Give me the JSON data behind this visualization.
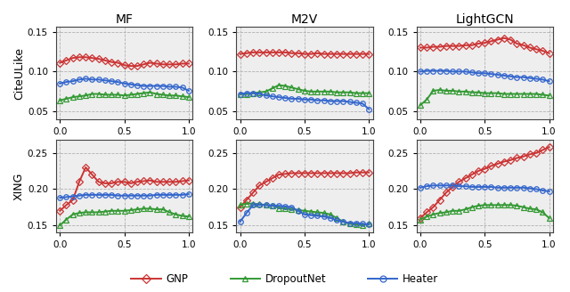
{
  "x_vals": [
    0.0,
    0.05,
    0.1,
    0.15,
    0.2,
    0.25,
    0.3,
    0.35,
    0.4,
    0.45,
    0.5,
    0.55,
    0.6,
    0.65,
    0.7,
    0.75,
    0.8,
    0.85,
    0.9,
    0.95,
    1.0
  ],
  "col_titles": [
    "MF",
    "M2V",
    "LightGCN"
  ],
  "row_titles": [
    "CiteULike",
    "XING"
  ],
  "colors": {
    "GNP": "#cc3333",
    "DropoutNet": "#339933",
    "Heater": "#3366cc"
  },
  "markers": {
    "GNP": "D",
    "DropoutNet": "^",
    "Heater": "o"
  },
  "data": {
    "CiteULike": {
      "MF": {
        "GNP": [
          0.111,
          0.114,
          0.117,
          0.118,
          0.118,
          0.117,
          0.116,
          0.114,
          0.112,
          0.111,
          0.108,
          0.107,
          0.107,
          0.109,
          0.111,
          0.11,
          0.109,
          0.109,
          0.109,
          0.11,
          0.11
        ],
        "DropoutNet": [
          0.064,
          0.066,
          0.068,
          0.069,
          0.07,
          0.072,
          0.072,
          0.071,
          0.071,
          0.071,
          0.07,
          0.071,
          0.072,
          0.073,
          0.074,
          0.072,
          0.071,
          0.07,
          0.07,
          0.069,
          0.068
        ],
        "Heater": [
          0.085,
          0.087,
          0.088,
          0.09,
          0.091,
          0.09,
          0.09,
          0.089,
          0.088,
          0.087,
          0.085,
          0.084,
          0.083,
          0.082,
          0.082,
          0.082,
          0.082,
          0.081,
          0.081,
          0.08,
          0.076
        ]
      },
      "M2V": {
        "GNP": [
          0.122,
          0.123,
          0.124,
          0.124,
          0.124,
          0.124,
          0.124,
          0.124,
          0.123,
          0.123,
          0.122,
          0.122,
          0.123,
          0.122,
          0.122,
          0.122,
          0.122,
          0.122,
          0.122,
          0.122,
          0.122
        ],
        "DropoutNet": [
          0.072,
          0.072,
          0.073,
          0.074,
          0.075,
          0.079,
          0.083,
          0.082,
          0.08,
          0.078,
          0.076,
          0.075,
          0.075,
          0.075,
          0.075,
          0.074,
          0.074,
          0.074,
          0.073,
          0.073,
          0.073
        ],
        "Heater": [
          0.072,
          0.073,
          0.073,
          0.072,
          0.07,
          0.069,
          0.068,
          0.067,
          0.066,
          0.066,
          0.065,
          0.065,
          0.064,
          0.064,
          0.063,
          0.063,
          0.063,
          0.062,
          0.061,
          0.06,
          0.053
        ]
      },
      "LightGCN": {
        "GNP": [
          0.13,
          0.13,
          0.131,
          0.131,
          0.132,
          0.132,
          0.132,
          0.133,
          0.133,
          0.135,
          0.136,
          0.138,
          0.14,
          0.142,
          0.14,
          0.135,
          0.133,
          0.13,
          0.128,
          0.126,
          0.123
        ],
        "DropoutNet": [
          0.058,
          0.065,
          0.076,
          0.077,
          0.076,
          0.076,
          0.075,
          0.075,
          0.074,
          0.074,
          0.073,
          0.073,
          0.073,
          0.072,
          0.072,
          0.072,
          0.072,
          0.072,
          0.072,
          0.071,
          0.07
        ],
        "Heater": [
          0.1,
          0.101,
          0.101,
          0.101,
          0.101,
          0.1,
          0.1,
          0.1,
          0.099,
          0.098,
          0.098,
          0.097,
          0.096,
          0.095,
          0.094,
          0.093,
          0.093,
          0.092,
          0.091,
          0.09,
          0.088
        ]
      }
    },
    "XING": {
      "MF": {
        "GNP": [
          0.17,
          0.178,
          0.185,
          0.21,
          0.23,
          0.22,
          0.21,
          0.208,
          0.208,
          0.21,
          0.21,
          0.208,
          0.21,
          0.211,
          0.212,
          0.21,
          0.21,
          0.21,
          0.21,
          0.211,
          0.212
        ],
        "DropoutNet": [
          0.15,
          0.158,
          0.165,
          0.167,
          0.168,
          0.168,
          0.168,
          0.169,
          0.17,
          0.17,
          0.17,
          0.171,
          0.172,
          0.173,
          0.173,
          0.172,
          0.172,
          0.168,
          0.165,
          0.163,
          0.162
        ],
        "Heater": [
          0.188,
          0.189,
          0.19,
          0.191,
          0.192,
          0.192,
          0.192,
          0.192,
          0.192,
          0.191,
          0.191,
          0.191,
          0.191,
          0.191,
          0.191,
          0.192,
          0.192,
          0.192,
          0.192,
          0.192,
          0.193
        ]
      },
      "M2V": {
        "GNP": [
          0.175,
          0.185,
          0.195,
          0.205,
          0.21,
          0.215,
          0.22,
          0.221,
          0.222,
          0.222,
          0.222,
          0.222,
          0.222,
          0.222,
          0.222,
          0.222,
          0.222,
          0.222,
          0.223,
          0.223,
          0.223
        ],
        "DropoutNet": [
          0.178,
          0.18,
          0.18,
          0.179,
          0.178,
          0.177,
          0.174,
          0.173,
          0.172,
          0.171,
          0.17,
          0.169,
          0.168,
          0.167,
          0.165,
          0.16,
          0.155,
          0.152,
          0.151,
          0.15,
          0.152
        ],
        "Heater": [
          0.155,
          0.167,
          0.178,
          0.178,
          0.178,
          0.177,
          0.177,
          0.176,
          0.175,
          0.17,
          0.165,
          0.164,
          0.163,
          0.162,
          0.16,
          0.157,
          0.155,
          0.153,
          0.153,
          0.152,
          0.151
        ]
      },
      "LightGCN": {
        "GNP": [
          0.16,
          0.168,
          0.175,
          0.185,
          0.195,
          0.203,
          0.21,
          0.215,
          0.22,
          0.225,
          0.228,
          0.232,
          0.235,
          0.238,
          0.24,
          0.243,
          0.245,
          0.248,
          0.25,
          0.254,
          0.258
        ],
        "DropoutNet": [
          0.158,
          0.162,
          0.165,
          0.167,
          0.168,
          0.17,
          0.17,
          0.172,
          0.175,
          0.177,
          0.178,
          0.178,
          0.178,
          0.178,
          0.178,
          0.177,
          0.175,
          0.173,
          0.172,
          0.168,
          0.16
        ],
        "Heater": [
          0.202,
          0.204,
          0.205,
          0.205,
          0.205,
          0.205,
          0.204,
          0.204,
          0.203,
          0.203,
          0.203,
          0.203,
          0.202,
          0.202,
          0.202,
          0.202,
          0.202,
          0.201,
          0.2,
          0.198,
          0.197
        ]
      }
    }
  },
  "ylims": {
    "CiteULike": [
      0.04,
      0.156
    ],
    "XING": [
      0.14,
      0.268
    ]
  },
  "yticks": {
    "CiteULike": [
      0.05,
      0.1,
      0.15
    ],
    "XING": [
      0.15,
      0.2,
      0.25
    ]
  },
  "legend_entries": [
    "GNP",
    "DropoutNet",
    "Heater"
  ],
  "linewidth": 1.4,
  "markersize": 4.0,
  "panel_bg": "#eeeeee",
  "fig_bg": "#ffffff"
}
